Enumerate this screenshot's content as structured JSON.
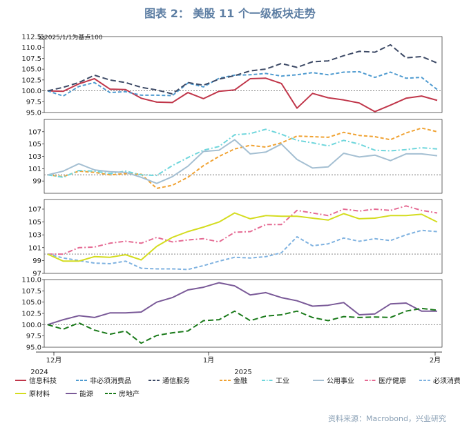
{
  "title": "图表 2： 美股 11 个一级板块走势",
  "note": "设2025/1/1为基点100",
  "source": "资料来源：Macrobond，兴业研究",
  "colors": {
    "信息科技": "#c0364a",
    "非必须消费品": "#4f9bd0",
    "通信服务": "#3d4a66",
    "金融": "#f0a232",
    "工业": "#6fd6dc",
    "公用事业": "#a4bfd2",
    "医疗健康": "#e56a93",
    "必须消费品": "#7fb2e0",
    "原材料": "#d4dc1f",
    "能源": "#7a5a98",
    "房地产": "#1a7a1a"
  },
  "x_axis": {
    "ticks": [
      {
        "x": -0.4,
        "label": "12月"
      },
      {
        "x": 15.5,
        "label": "1月"
      },
      {
        "x": 30.5,
        "label": "2月"
      }
    ],
    "year_labels": [
      {
        "x": -0.4,
        "label": "2024"
      },
      {
        "x": 18.3,
        "label": "2025"
      }
    ]
  },
  "chart_data": [
    {
      "type": "line",
      "ylim": [
        95.0,
        112.5
      ],
      "yticks": [
        "95.0",
        "97.5",
        "100.0",
        "102.5",
        "105.0",
        "107.5",
        "110.0",
        "112.5"
      ],
      "reference_line": 100,
      "x": [
        0,
        1,
        2,
        3,
        4,
        5,
        6,
        7,
        8,
        9,
        10,
        11,
        12,
        13,
        14,
        15,
        16,
        17,
        18,
        19,
        20,
        21,
        22,
        23,
        24,
        25,
        26,
        27,
        28,
        29,
        30
      ],
      "series": [
        {
          "name": "信息科技",
          "dash": "solid",
          "values": [
            100.0,
            99.9,
            101.6,
            102.8,
            100.4,
            100.3,
            98.3,
            97.4,
            97.3,
            99.6,
            98.2,
            99.9,
            100.2,
            102.8,
            102.9,
            101.7,
            96.0,
            99.4,
            98.4,
            97.9,
            97.2,
            95.2,
            96.7,
            98.3,
            98.8,
            97.8,
            null,
            null,
            null,
            null,
            null
          ]
        },
        {
          "name": "非必须消费品",
          "dash": "dash",
          "values": [
            100.0,
            98.8,
            101.0,
            101.9,
            99.6,
            99.8,
            99.0,
            99.0,
            98.9,
            101.8,
            100.9,
            102.9,
            103.6,
            103.7,
            104.0,
            103.4,
            103.7,
            104.2,
            103.7,
            104.3,
            104.4,
            103.1,
            104.3,
            102.9,
            103.1,
            100.3,
            null,
            null,
            null,
            null,
            null
          ]
        },
        {
          "name": "通信服务",
          "dash": "longdash",
          "values": [
            100.0,
            100.8,
            101.9,
            103.6,
            102.5,
            101.9,
            100.8,
            100.2,
            99.3,
            101.9,
            101.3,
            102.7,
            103.5,
            104.6,
            105.0,
            106.3,
            105.4,
            106.7,
            106.9,
            108.1,
            109.1,
            108.9,
            110.6,
            107.6,
            107.9,
            106.4,
            null,
            null,
            null,
            null,
            null
          ]
        }
      ]
    },
    {
      "type": "line",
      "ylim": [
        97,
        109
      ],
      "yticks": [
        "99",
        "101",
        "103",
        "105",
        "107"
      ],
      "reference_line": 100,
      "x": [
        0,
        1,
        2,
        3,
        4,
        5,
        6,
        7,
        8,
        9,
        10,
        11,
        12,
        13,
        14,
        15,
        16,
        17,
        18,
        19,
        20,
        21,
        22,
        23,
        24,
        25,
        26,
        27,
        28,
        29,
        30
      ],
      "series": [
        {
          "name": "金融",
          "dash": "dash",
          "values": [
            100.0,
            99.7,
            100.6,
            100.4,
            100.0,
            100.2,
            100.1,
            97.8,
            98.3,
            99.6,
            101.5,
            103.0,
            104.2,
            104.8,
            104.5,
            105.2,
            106.3,
            106.2,
            106.1,
            106.9,
            106.4,
            106.2,
            105.7,
            106.8,
            107.6,
            107.0,
            null,
            null,
            null,
            null,
            null
          ]
        },
        {
          "name": "工业",
          "dash": "dashdot",
          "values": [
            100.0,
            99.6,
            100.7,
            100.6,
            100.2,
            100.6,
            100.0,
            99.9,
            101.5,
            102.8,
            104.0,
            104.6,
            106.5,
            106.7,
            107.4,
            106.6,
            105.6,
            105.2,
            104.7,
            105.6,
            105.0,
            104.0,
            103.9,
            104.1,
            104.4,
            104.2,
            null,
            null,
            null,
            null,
            null
          ]
        },
        {
          "name": "公用事业",
          "dash": "solid",
          "values": [
            100.0,
            100.6,
            101.8,
            100.8,
            100.5,
            100.4,
            99.6,
            98.6,
            99.7,
            101.4,
            103.8,
            104.0,
            105.7,
            103.4,
            103.7,
            105.0,
            102.5,
            101.1,
            101.3,
            103.5,
            102.9,
            103.2,
            102.3,
            103.4,
            103.4,
            103.1,
            null,
            null,
            null,
            null,
            null
          ]
        }
      ]
    },
    {
      "type": "line",
      "ylim": [
        97,
        108.5
      ],
      "yticks": [
        "97",
        "99",
        "101",
        "103",
        "105",
        "107"
      ],
      "reference_line": 100,
      "x": [
        0,
        1,
        2,
        3,
        4,
        5,
        6,
        7,
        8,
        9,
        10,
        11,
        12,
        13,
        14,
        15,
        16,
        17,
        18,
        19,
        20,
        21,
        22,
        23,
        24,
        25,
        26,
        27,
        28,
        29,
        30
      ],
      "series": [
        {
          "name": "医疗健康",
          "dash": "dashdot",
          "values": [
            100.0,
            100.0,
            101.0,
            101.1,
            101.7,
            102.0,
            101.7,
            102.6,
            101.9,
            102.2,
            102.4,
            101.9,
            103.4,
            103.5,
            104.6,
            104.6,
            106.8,
            106.4,
            106.0,
            107.0,
            106.7,
            107.0,
            106.8,
            107.5,
            106.8,
            106.4,
            null,
            null,
            null,
            null,
            null
          ]
        },
        {
          "name": "必须消费品",
          "dash": "dash",
          "values": [
            100.0,
            99.4,
            99.0,
            98.6,
            98.5,
            98.9,
            97.8,
            97.7,
            97.7,
            97.6,
            98.2,
            98.9,
            99.5,
            99.4,
            99.6,
            100.2,
            102.7,
            101.3,
            101.6,
            102.5,
            102.0,
            102.4,
            102.1,
            103.0,
            103.7,
            103.5,
            null,
            null,
            null,
            null,
            null
          ]
        },
        {
          "name": "原材料",
          "dash": "solid",
          "values": [
            100.0,
            98.9,
            98.9,
            99.6,
            99.5,
            99.9,
            99.1,
            101.2,
            102.6,
            103.5,
            104.2,
            105.0,
            106.4,
            105.5,
            106.0,
            105.9,
            105.9,
            105.6,
            105.3,
            106.3,
            105.5,
            105.6,
            106.0,
            106.0,
            106.2,
            105.0,
            null,
            null,
            null,
            null,
            null
          ]
        }
      ]
    },
    {
      "type": "line",
      "ylim": [
        95.0,
        110.0
      ],
      "yticks": [
        "95.0",
        "97.5",
        "100.0",
        "102.5",
        "105.0",
        "107.5",
        "110.0"
      ],
      "reference_line": 100,
      "x": [
        0,
        1,
        2,
        3,
        4,
        5,
        6,
        7,
        8,
        9,
        10,
        11,
        12,
        13,
        14,
        15,
        16,
        17,
        18,
        19,
        20,
        21,
        22,
        23,
        24,
        25,
        26,
        27,
        28,
        29,
        30
      ],
      "series": [
        {
          "name": "能源",
          "dash": "solid",
          "values": [
            100.0,
            101.1,
            102.0,
            101.6,
            102.6,
            102.6,
            102.8,
            105.0,
            106.0,
            107.7,
            108.3,
            109.3,
            108.6,
            106.6,
            107.1,
            106.0,
            105.3,
            104.1,
            104.3,
            104.9,
            102.2,
            102.4,
            104.6,
            104.8,
            103.0,
            103.0,
            null,
            null,
            null,
            null,
            null
          ]
        },
        {
          "name": "房地产",
          "dash": "longdash",
          "values": [
            100.0,
            99.0,
            100.4,
            98.8,
            97.9,
            98.6,
            95.9,
            97.6,
            98.2,
            98.6,
            100.9,
            101.1,
            103.0,
            100.9,
            101.9,
            102.2,
            103.0,
            101.6,
            100.9,
            101.8,
            101.6,
            101.7,
            101.6,
            103.0,
            103.6,
            103.2,
            null,
            null,
            null,
            null,
            null
          ]
        }
      ]
    }
  ],
  "legend": [
    {
      "name": "信息科技",
      "dash": "solid"
    },
    {
      "name": "非必须消费品",
      "dash": "dash"
    },
    {
      "name": "通信服务",
      "dash": "longdash"
    },
    {
      "name": "金融",
      "dash": "dash"
    },
    {
      "name": "工业",
      "dash": "dashdot"
    },
    {
      "name": "公用事业",
      "dash": "solid"
    },
    {
      "name": "医疗健康",
      "dash": "dashdot"
    },
    {
      "name": "必须消费品",
      "dash": "dash"
    },
    {
      "name": "原材料",
      "dash": "solid"
    },
    {
      "name": "能源",
      "dash": "solid"
    },
    {
      "name": "房地产",
      "dash": "longdash"
    }
  ]
}
